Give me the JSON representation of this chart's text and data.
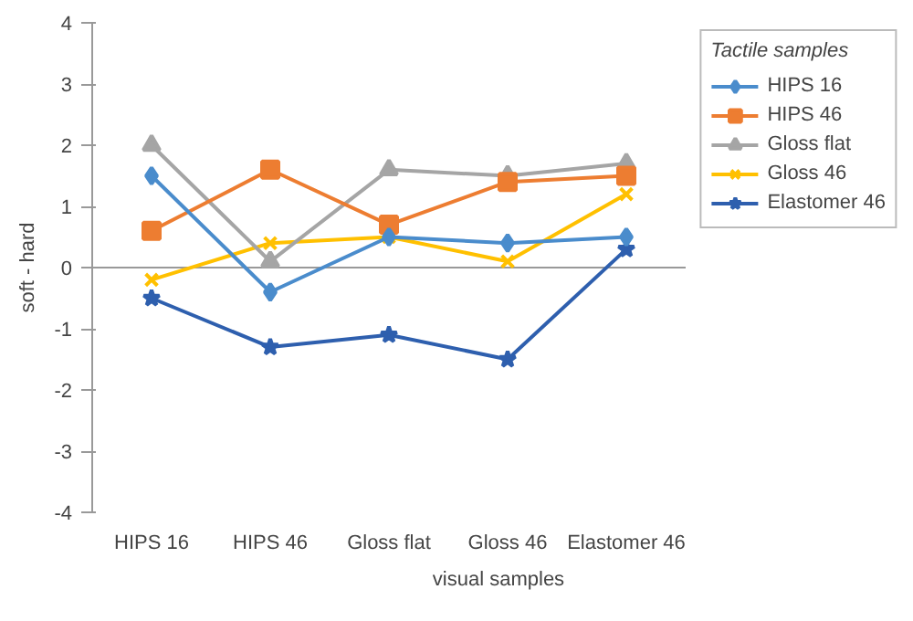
{
  "chart_data": {
    "type": "line",
    "xlabel": "visual samples",
    "ylabel": "soft - hard",
    "legend_title": "Tactile samples",
    "categories": [
      "HIPS 16",
      "HIPS 46",
      "Gloss flat",
      "Gloss 46",
      "Elastomer 46"
    ],
    "series": [
      {
        "name": "HIPS 16",
        "color": "#4a8ccc",
        "marker": "diamond",
        "values": [
          1.5,
          -0.4,
          0.5,
          0.4,
          0.5
        ]
      },
      {
        "name": "HIPS 46",
        "color": "#ed7d31",
        "marker": "square",
        "values": [
          0.6,
          1.6,
          0.7,
          1.4,
          1.5
        ]
      },
      {
        "name": "Gloss flat",
        "color": "#a5a5a5",
        "marker": "triangle",
        "values": [
          2.0,
          0.1,
          1.6,
          1.5,
          1.7
        ]
      },
      {
        "name": "Gloss 46",
        "color": "#ffc000",
        "marker": "cross",
        "values": [
          -0.2,
          0.4,
          0.5,
          0.1,
          1.2
        ]
      },
      {
        "name": "Elastomer 46",
        "color": "#2e5fae",
        "marker": "star",
        "values": [
          -0.5,
          -1.3,
          -1.1,
          -1.5,
          0.3
        ]
      }
    ],
    "ylim": [
      -4,
      4
    ],
    "yticks": [
      -4,
      -3,
      -2,
      -1,
      0,
      1,
      2,
      3,
      4
    ],
    "ref_lines": [
      {
        "axis": "y",
        "value": 0,
        "color": "#999999"
      }
    ],
    "grid": false,
    "legend": "right",
    "line_style": "solid"
  }
}
